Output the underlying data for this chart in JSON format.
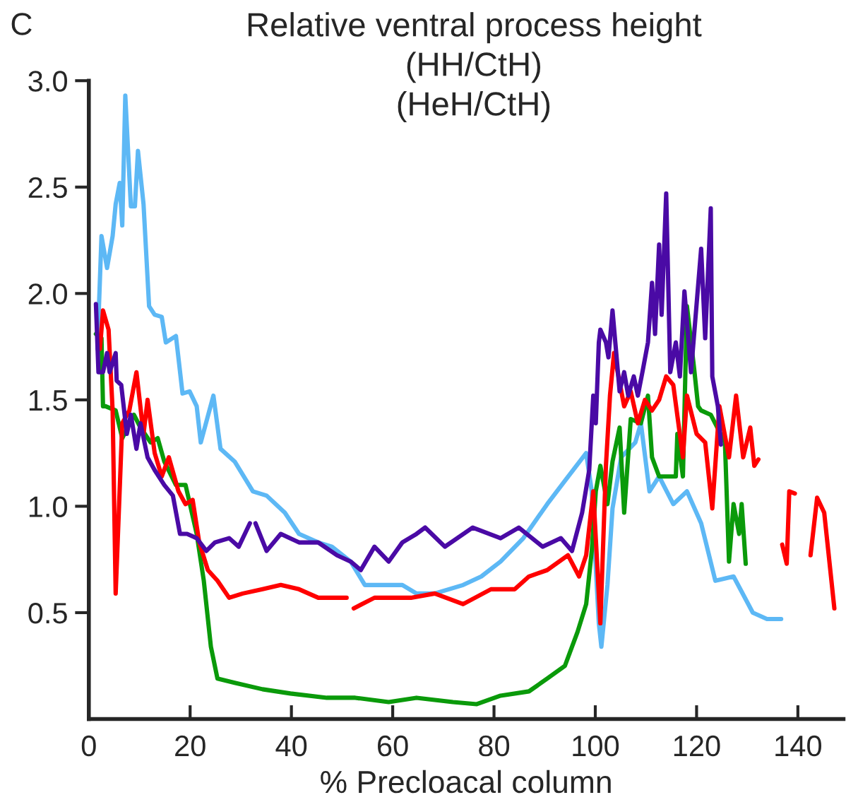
{
  "chart_data": {
    "type": "line",
    "title": "Relative ventral process height\n(HH/CtH)\n(HeH/CtH)",
    "xlabel": "% Precloacal column",
    "annotations": [
      "C"
    ],
    "xlim": [
      0,
      149
    ],
    "ylim": [
      0,
      3.0
    ],
    "xticks": [
      0,
      20,
      40,
      60,
      80,
      100,
      120,
      140
    ],
    "yticks": [
      0.5,
      {
        "value": 1,
        "label": "1.0"
      },
      1.5,
      {
        "value": 2,
        "label": "2.0"
      },
      2.5,
      {
        "value": 3,
        "label": "3.0"
      }
    ],
    "grid": false,
    "marker": "none",
    "line_style": "solid",
    "series": [
      {
        "color": "#5db8f5",
        "x": [
          1.7,
          2.5,
          3.6,
          4.7,
          5.3,
          6.1,
          6.6,
          7.2,
          8.3,
          9.1,
          9.7,
          10.8,
          11.9,
          13,
          14.4,
          15.2,
          17.2,
          18.5,
          19.9,
          21.3,
          22.1,
          24.6,
          26,
          28.8,
          32.4,
          35.1,
          38.7,
          41.5,
          45.3,
          48,
          51.7,
          54.5,
          58,
          61.9,
          64.7,
          68.3,
          73.9,
          77.5,
          81.3,
          85.8,
          90.5,
          94,
          98.2,
          99.3,
          100.7,
          101.2,
          102.4,
          103.4,
          105.1,
          107.9,
          109,
          110.7,
          112.6,
          115.4,
          118.1,
          120.9,
          123.7,
          127.3,
          131.1,
          133.9,
          136.7
        ],
        "values": [
          1.74,
          2.27,
          2.12,
          2.27,
          2.42,
          2.52,
          2.32,
          2.93,
          2.41,
          2.41,
          2.67,
          2.42,
          1.94,
          1.9,
          1.89,
          1.77,
          1.8,
          1.53,
          1.54,
          1.47,
          1.3,
          1.52,
          1.27,
          1.21,
          1.07,
          1.05,
          0.97,
          0.87,
          0.83,
          0.81,
          0.74,
          0.63,
          0.63,
          0.63,
          0.59,
          0.59,
          0.63,
          0.67,
          0.74,
          0.85,
          1.01,
          1.12,
          1.25,
          1.07,
          0.45,
          0.34,
          0.63,
          0.99,
          1.23,
          1.3,
          1.39,
          1.07,
          1.14,
          1.01,
          1.07,
          0.92,
          0.65,
          0.67,
          0.5,
          0.47,
          0.47
        ]
      },
      {
        "color": "#0a9a0a",
        "x": [
          1.4,
          2.5,
          2.8,
          3.3,
          5.3,
          6.6,
          8.9,
          10.2,
          12.2,
          13.6,
          14.9,
          17.2,
          19.1,
          21.3,
          22.7,
          24.1,
          25.4,
          28.8,
          34.3,
          39.8,
          47,
          52.6,
          59.2,
          64.7,
          71.9,
          76.6,
          81.3,
          86.9,
          90.5,
          94,
          96.5,
          98.2,
          99.3,
          100.1,
          101,
          102.4,
          103.4,
          104.8,
          105.7,
          107,
          109,
          110.4,
          111.2,
          112.6,
          115.9,
          116.2,
          117.3,
          118.1,
          119.5,
          120.3,
          120.9,
          122.8,
          125.6,
          126.4,
          127.3,
          128.4,
          128.9,
          129.7
        ],
        "values": [
          1.81,
          1.79,
          1.47,
          1.47,
          1.45,
          1.32,
          1.43,
          1.37,
          1.3,
          1.32,
          1.21,
          1.1,
          1.1,
          0.87,
          0.65,
          0.34,
          0.19,
          0.17,
          0.14,
          0.12,
          0.1,
          0.1,
          0.08,
          0.1,
          0.08,
          0.07,
          0.11,
          0.13,
          0.19,
          0.25,
          0.41,
          0.54,
          0.79,
          1.07,
          1.19,
          1.01,
          1.21,
          1.37,
          0.97,
          1.41,
          1.39,
          1.52,
          1.23,
          1.14,
          1.14,
          1.34,
          1.14,
          1.94,
          1.65,
          1.47,
          1.45,
          1.43,
          1.3,
          0.74,
          1.01,
          0.87,
          1.01,
          0.73
        ]
      },
      {
        "color": "#ff0000",
        "x": [
          2.2,
          2.8,
          3.9,
          4.7,
          5.3,
          6.6,
          8,
          9.4,
          10.8,
          11.6,
          13,
          14.4,
          15.8,
          17.7,
          19.1,
          20.5,
          21.8,
          23.5,
          25.4,
          27.7,
          30.4,
          34.3,
          37.9,
          41.5,
          45.3,
          50.9,
          51.6,
          52.3,
          56.4,
          60.9,
          63.6,
          68.3,
          73.9,
          79.4,
          84.1,
          86.9,
          90.5,
          94.6,
          96.8,
          98.2,
          99.6,
          101,
          102.1,
          102.9,
          103.7,
          105.7,
          107,
          108.4,
          109.8,
          111.2,
          112.6,
          114,
          115.4,
          117.3,
          118.1,
          120,
          121.7,
          123.1,
          124.5,
          126.4,
          127.8,
          129.2,
          130.6,
          131.4,
          132.2,
          134.5,
          136.9,
          137.8,
          138.3,
          139.4,
          141,
          142.5,
          143.8,
          145.2,
          147.2
        ],
        "values": [
          1.74,
          1.92,
          1.83,
          1.45,
          0.59,
          1.39,
          1.45,
          1.63,
          1.34,
          1.5,
          1.25,
          1.14,
          1.23,
          1.07,
          1.01,
          1.03,
          0.83,
          0.7,
          0.65,
          0.57,
          0.59,
          0.61,
          0.63,
          0.61,
          0.57,
          0.57,
          null,
          0.52,
          0.57,
          0.57,
          0.57,
          0.59,
          0.54,
          0.61,
          0.61,
          0.67,
          0.7,
          0.77,
          0.67,
          0.77,
          1.07,
          0.45,
          1.19,
          1.52,
          1.72,
          1.47,
          1.54,
          1.39,
          1.5,
          1.45,
          1.5,
          1.61,
          1.57,
          1.23,
          1.52,
          1.34,
          1.3,
          0.99,
          1.47,
          1.23,
          1.52,
          1.23,
          1.37,
          1.19,
          1.22,
          null,
          0.82,
          0.73,
          1.07,
          1.06,
          null,
          0.77,
          1.04,
          0.97,
          0.52
        ]
      },
      {
        "color": "#4a0aa5",
        "x": [
          1.4,
          1.9,
          2.8,
          3.6,
          4.1,
          5.3,
          5.5,
          6.4,
          7.5,
          8.3,
          9.4,
          10.2,
          11.6,
          13,
          14.9,
          16.6,
          18,
          19.4,
          21.3,
          23.2,
          24.9,
          27.7,
          29.6,
          31.8,
          32.3,
          32.9,
          35.1,
          37.9,
          41.5,
          45.3,
          49,
          51.7,
          53.7,
          56.4,
          59.2,
          61.9,
          64.7,
          66.4,
          70.3,
          75.8,
          81.3,
          84.9,
          89.6,
          93.2,
          95.4,
          97.4,
          98.8,
          99.6,
          100.1,
          100.7,
          101,
          102.1,
          102.6,
          103.4,
          104.8,
          105.7,
          106.5,
          107.6,
          108.4,
          109.3,
          110.4,
          111.2,
          111.8,
          112.6,
          113.1,
          114,
          114.8,
          115.9,
          116.7,
          117.6,
          118.9,
          120.9,
          121.7,
          122.8,
          123.1,
          124.2,
          124.8
        ],
        "values": [
          1.95,
          1.63,
          1.63,
          1.72,
          1.63,
          1.72,
          1.59,
          1.57,
          1.34,
          1.43,
          1.27,
          1.39,
          1.23,
          1.17,
          1.1,
          1.05,
          0.87,
          0.87,
          0.85,
          0.79,
          0.83,
          0.85,
          0.81,
          0.92,
          null,
          0.92,
          0.79,
          0.87,
          0.83,
          0.83,
          0.77,
          0.74,
          0.7,
          0.81,
          0.74,
          0.83,
          0.87,
          0.9,
          0.81,
          0.9,
          0.85,
          0.9,
          0.81,
          0.85,
          0.79,
          0.97,
          1.17,
          1.52,
          1.39,
          1.77,
          1.83,
          1.77,
          1.7,
          1.92,
          1.54,
          1.63,
          1.52,
          1.61,
          1.52,
          1.63,
          1.77,
          2.05,
          1.81,
          2.23,
          1.9,
          2.47,
          1.63,
          1.77,
          1.61,
          2.01,
          1.63,
          2.21,
          1.79,
          2.4,
          1.61,
          1.47,
          1.29
        ]
      }
    ]
  }
}
